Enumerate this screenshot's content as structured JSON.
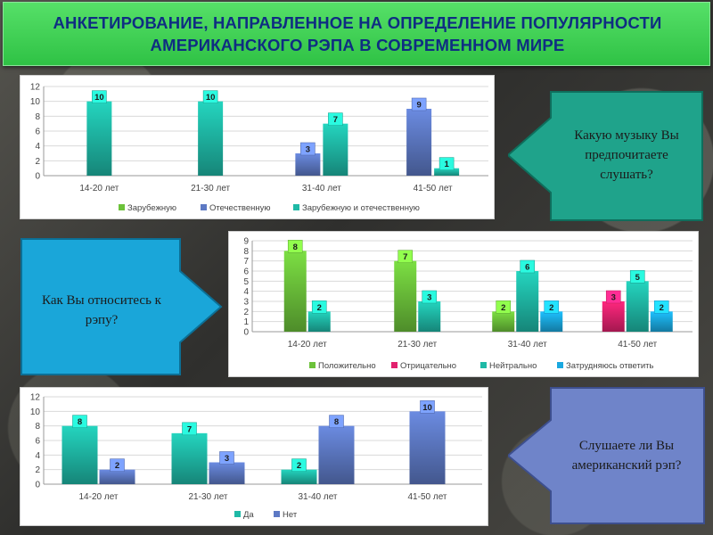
{
  "title": "АНКЕТИРОВАНИЕ, НАПРАВЛЕННОЕ НА ОПРЕДЕЛЕНИЕ ПОПУЛЯРНОСТИ АМЕРИКАНСКОГО РЭПА В СОВРЕМЕННОМ МИРЕ",
  "questions": {
    "q1": "Какую музыку Вы предпочитаете слушать?",
    "q2": "Как Вы относитесь к рэпу?",
    "q3": "Слушаете ли Вы американский рэп?"
  },
  "colors": {
    "title_band": "#3fd157",
    "title_text": "#0f2d82",
    "callout_green": "#1fa38b",
    "callout_blue": "#1aa6d9",
    "callout_purple": "#6f84c9"
  },
  "chart_data": [
    {
      "type": "bar",
      "categories": [
        "14-20 лет",
        "21-30 лет",
        "31-40 лет",
        "41-50 лет"
      ],
      "ylim": [
        0,
        12
      ],
      "yticks": [
        0,
        2,
        4,
        6,
        8,
        10,
        12
      ],
      "grid": true,
      "legend_position": "bottom",
      "series": [
        {
          "name": "Зарубежную",
          "color": "#6cc23a",
          "values": [
            null,
            null,
            null,
            null
          ]
        },
        {
          "name": "Отечественную",
          "color": "#5d79c4",
          "values": [
            null,
            null,
            3,
            9
          ]
        },
        {
          "name": "Зарубежную и отечественную",
          "color": "#1fb9a6",
          "values": [
            10,
            10,
            7,
            1
          ]
        }
      ],
      "data_labels": [
        {
          "category": "14-20 лет",
          "value": "10"
        },
        {
          "category": "21-30 лет",
          "value": "10"
        },
        {
          "category": "31-40 лет",
          "value": "3"
        },
        {
          "category": "31-40 лет",
          "value": "7"
        },
        {
          "category": "41-50 лет",
          "value": "9"
        },
        {
          "category": "41-50 лет",
          "value": "1"
        }
      ]
    },
    {
      "type": "bar",
      "categories": [
        "14-20 лет",
        "21-30 лет",
        "31-40 лет",
        "41-50 лет"
      ],
      "ylim": [
        0,
        9
      ],
      "yticks": [
        0,
        1,
        2,
        3,
        4,
        5,
        6,
        7,
        8,
        9
      ],
      "grid": true,
      "legend_position": "bottom",
      "series": [
        {
          "name": "Положительно",
          "color": "#6cc23a",
          "values": [
            8,
            7,
            2,
            null
          ]
        },
        {
          "name": "Отрицательно",
          "color": "#e2226e",
          "values": [
            null,
            null,
            null,
            3
          ]
        },
        {
          "name": "Нейтрально",
          "color": "#1fb9a6",
          "values": [
            2,
            3,
            6,
            5
          ]
        },
        {
          "name": "Затрудняюсь ответить",
          "color": "#1aa8e0",
          "values": [
            null,
            null,
            2,
            2
          ]
        }
      ]
    },
    {
      "type": "bar",
      "categories": [
        "14-20 лет",
        "21-30 лет",
        "31-40 лет",
        "41-50 лет"
      ],
      "ylim": [
        0,
        12
      ],
      "yticks": [
        0,
        2,
        4,
        6,
        8,
        10,
        12
      ],
      "grid": true,
      "legend_position": "bottom",
      "series": [
        {
          "name": "Да",
          "color": "#1fb9a6",
          "values": [
            8,
            7,
            2,
            null
          ]
        },
        {
          "name": "Нет",
          "color": "#5d79c4",
          "values": [
            2,
            3,
            8,
            10
          ]
        }
      ]
    }
  ]
}
